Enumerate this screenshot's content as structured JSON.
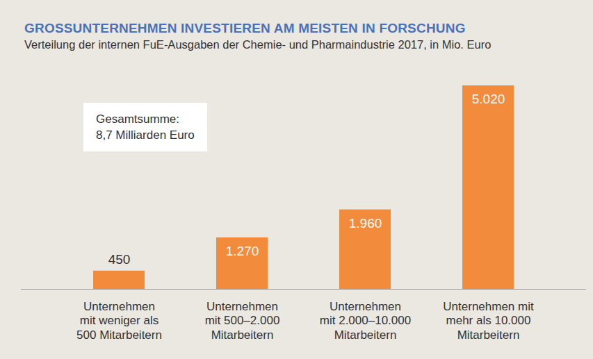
{
  "chart_data": {
    "type": "bar",
    "title": "GROSSUNTERNEHMEN INVESTIEREN AM MEISTEN IN FORSCHUNG",
    "subtitle": "Verteilung der internen FuE-Ausgaben der Chemie- und Pharmaindustrie 2017, in Mio. Euro",
    "annotation": "Gesamtsumme:\n8,7 Milliarden Euro",
    "categories": [
      "Unternehmen\nmit weniger als\n500 Mitarbeitern",
      "Unternehmen\nmit 500–2.000\nMitarbeitern",
      "Unternehmen\nmit 2.000–10.000\nMitarbeitern",
      "Unternehmen mit\nmehr als 10.000\nMitarbeitern"
    ],
    "values": [
      450,
      1270,
      1960,
      5020
    ],
    "value_labels": [
      "450",
      "1.270",
      "1.960",
      "5.020"
    ],
    "color": "#f28b3c",
    "ylim": [
      0,
      5020
    ],
    "tick_labels": false,
    "grid": false,
    "data_labels": true
  }
}
